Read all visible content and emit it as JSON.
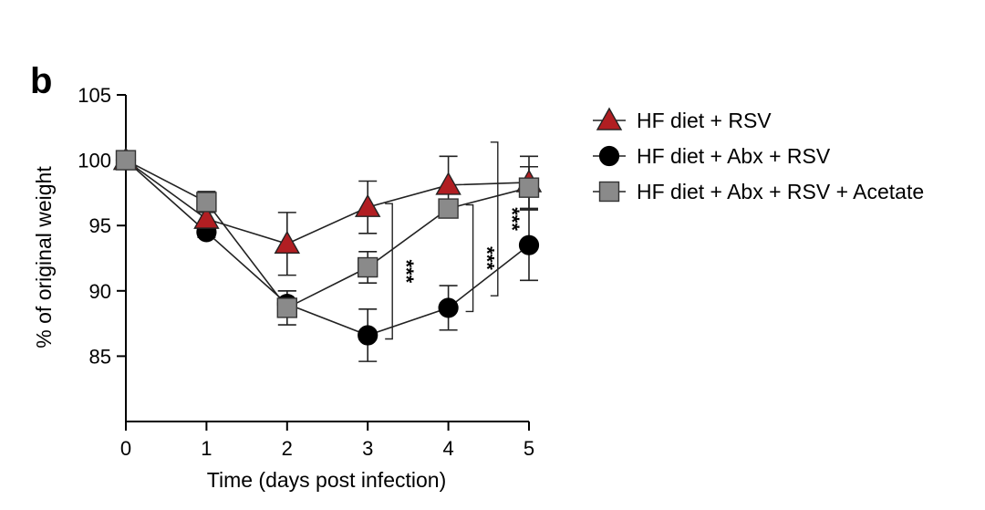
{
  "panel_label": "b",
  "chart_data": {
    "type": "line",
    "xlabel": "Time (days post infection)",
    "ylabel": "% of original weight",
    "x": [
      0,
      1,
      2,
      3,
      4,
      5
    ],
    "xticks": [
      "0",
      "1",
      "2",
      "3",
      "4",
      "5"
    ],
    "yticks": [
      "85",
      "90",
      "95",
      "100",
      "105"
    ],
    "xlim": [
      0,
      5
    ],
    "ylim": [
      80,
      105
    ],
    "grid": false,
    "legend_position": "right",
    "series": [
      {
        "name": "HF diet + RSV",
        "marker": "triangle",
        "color": "#b11e22",
        "values": [
          100,
          95.5,
          93.6,
          96.4,
          98.1,
          98.3
        ],
        "error": [
          0,
          0.6,
          2.4,
          2.0,
          2.2,
          2.0
        ]
      },
      {
        "name": "HF diet + Abx + RSV",
        "marker": "circle",
        "color": "#000000",
        "values": [
          100,
          94.5,
          89.0,
          86.6,
          88.7,
          93.5
        ],
        "error": [
          0,
          0.4,
          1.0,
          2.0,
          1.7,
          2.7
        ]
      },
      {
        "name": "HF diet + Abx + RSV + Acetate",
        "marker": "square",
        "color": "#8a8a8a",
        "values": [
          100,
          96.8,
          88.7,
          91.8,
          96.3,
          97.9
        ],
        "error": [
          0,
          0.8,
          1.3,
          1.2,
          0.7,
          1.6
        ]
      }
    ],
    "annotations": [
      {
        "text": "***",
        "x": 3,
        "from_series": 0,
        "to_series": 1
      },
      {
        "text": "***",
        "x": 4,
        "from_series": 2,
        "to_series": 1
      },
      {
        "text": "***",
        "x": 4.5,
        "from_series": 0,
        "to_series": 1
      }
    ]
  }
}
